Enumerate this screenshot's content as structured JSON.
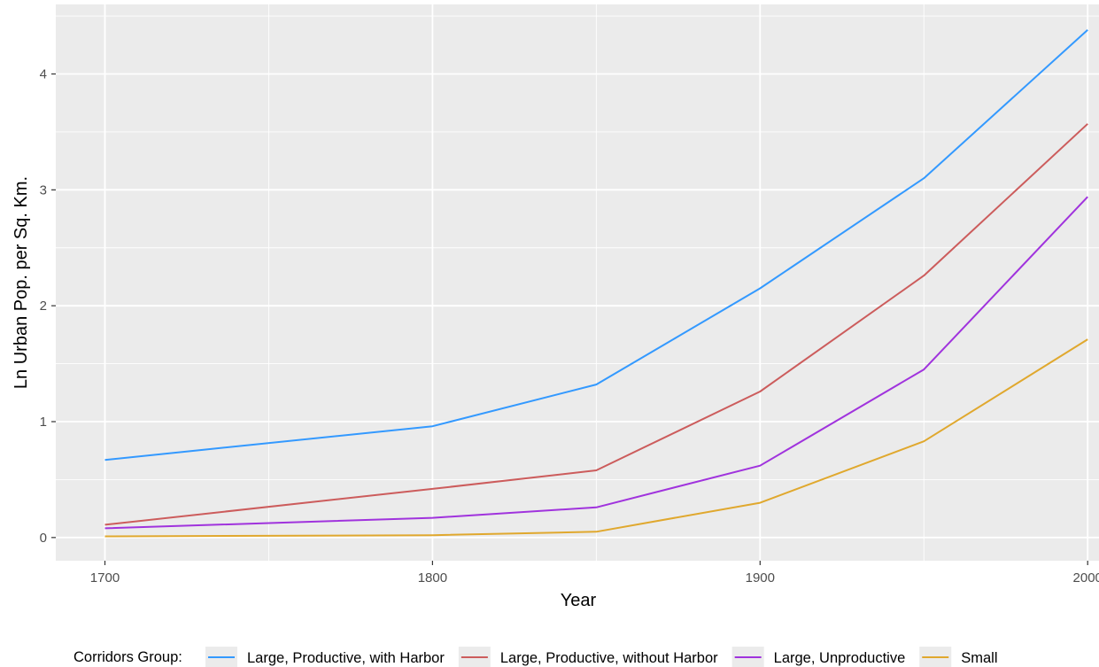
{
  "chart_data": {
    "type": "line",
    "title": "",
    "xlabel": "Year",
    "ylabel": "Ln Urban Pop. per Sq. Km.",
    "x": [
      1700,
      1800,
      1850,
      1900,
      1950,
      2000
    ],
    "xlim": [
      1685,
      2004
    ],
    "ylim": [
      -0.2,
      4.6
    ],
    "xticks": [
      1700,
      1800,
      1900,
      2000
    ],
    "yticks": [
      0,
      1,
      2,
      3,
      4
    ],
    "grid": true,
    "legend": {
      "title": "Corridors Group:",
      "placement": "bottom"
    },
    "series": [
      {
        "name": "Large, Productive, with Harbor",
        "color": "#3399ff",
        "values": [
          0.67,
          0.96,
          1.32,
          2.15,
          3.1,
          4.38
        ]
      },
      {
        "name": "Large, Productive, without Harbor",
        "color": "#cc5c5c",
        "values": [
          0.11,
          0.42,
          0.58,
          1.26,
          2.26,
          3.57
        ]
      },
      {
        "name": "Large, Unproductive",
        "color": "#a033dd",
        "values": [
          0.08,
          0.17,
          0.26,
          0.62,
          1.45,
          2.94
        ]
      },
      {
        "name": "Small",
        "color": "#e0a82e",
        "values": [
          0.01,
          0.02,
          0.05,
          0.3,
          0.83,
          1.71
        ]
      }
    ]
  }
}
